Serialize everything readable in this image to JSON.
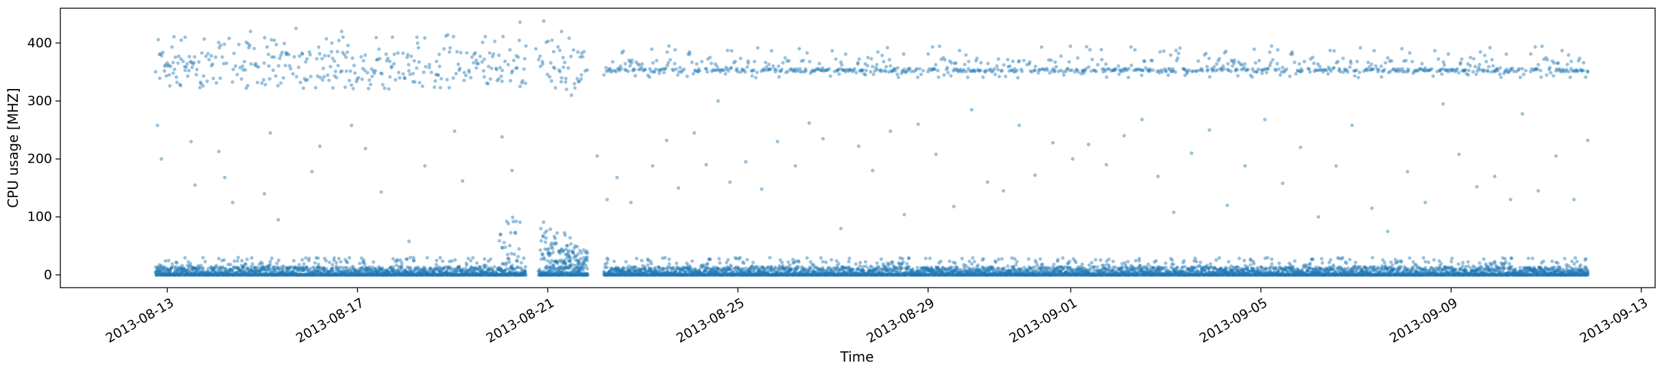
{
  "chart_data": {
    "type": "scatter",
    "title": "",
    "xlabel": "Time",
    "ylabel": "CPU usage [MHZ]",
    "xlim": [
      "2013-08-10T18:00",
      "2013-09-13T07:00"
    ],
    "ylim": [
      -22,
      460
    ],
    "grid": false,
    "legend": "none",
    "x_ticks": [
      "2013-08-13",
      "2013-08-17",
      "2013-08-21",
      "2013-08-25",
      "2013-08-29",
      "2013-09-01",
      "2013-09-05",
      "2013-09-09",
      "2013-09-13"
    ],
    "y_ticks": [
      0,
      100,
      200,
      300,
      400
    ],
    "series": [
      {
        "color": "#1f77b4",
        "marker": "circle",
        "alpha": 0.45,
        "x_start": "2013-08-12T18:00",
        "x_end": "2013-09-11T21:00",
        "points_description_values": {
          "baseline_cluster": {
            "range": [
              0,
              40
            ],
            "typical": 5
          },
          "upper_cluster": {
            "range": [
              320,
              420
            ],
            "typical": 355
          },
          "sparse_middle": {
            "range": [
              50,
              300
            ]
          },
          "peak_values": [
            436,
            438,
            425,
            421,
            420,
            410
          ]
        },
        "points": [
          [
            "2013-08-12T19:00",
            258
          ],
          [
            "2013-08-12T21:00",
            200
          ],
          [
            "2013-08-13T01:00",
            345
          ],
          [
            "2013-08-13T03:00",
            348
          ],
          [
            "2013-08-13T07:00",
            405
          ],
          [
            "2013-08-13T09:00",
            410
          ],
          [
            "2013-08-13T12:00",
            230
          ],
          [
            "2013-08-13T14:00",
            155
          ],
          [
            "2013-08-14T02:00",
            213
          ],
          [
            "2013-08-14T05:00",
            168
          ],
          [
            "2013-08-14T09:00",
            125
          ],
          [
            "2013-08-14T14:00",
            360
          ],
          [
            "2013-08-14T18:00",
            420
          ],
          [
            "2013-08-15T01:00",
            140
          ],
          [
            "2013-08-15T04:00",
            245
          ],
          [
            "2013-08-15T08:00",
            95
          ],
          [
            "2013-08-15T12:00",
            380
          ],
          [
            "2013-08-15T17:00",
            425
          ],
          [
            "2013-08-16T01:00",
            178
          ],
          [
            "2013-08-16T05:00",
            222
          ],
          [
            "2013-08-16T11:00",
            400
          ],
          [
            "2013-08-16T16:00",
            420
          ],
          [
            "2013-08-16T21:00",
            258
          ],
          [
            "2013-08-17T04:00",
            218
          ],
          [
            "2013-08-17T09:00",
            352
          ],
          [
            "2013-08-17T12:00",
            143
          ],
          [
            "2013-08-18T02:00",
            58
          ],
          [
            "2013-08-18T06:00",
            410
          ],
          [
            "2013-08-18T10:00",
            188
          ],
          [
            "2013-08-19T01:00",
            248
          ],
          [
            "2013-08-19T05:00",
            162
          ],
          [
            "2013-08-19T12:00",
            357
          ],
          [
            "2013-08-19T16:00",
            372
          ],
          [
            "2013-08-20T01:00",
            238
          ],
          [
            "2013-08-20T06:00",
            180
          ],
          [
            "2013-08-20T10:00",
            436
          ],
          [
            "2013-08-20T13:00",
            395
          ],
          [
            "2013-08-20T18:00",
            390
          ],
          [
            "2013-08-20T22:00",
            438
          ],
          [
            "2013-08-21T03:00",
            385
          ],
          [
            "2013-08-21T07:00",
            420
          ],
          [
            "2013-08-21T12:00",
            310
          ],
          [
            "2013-08-21T17:00",
            345
          ],
          [
            "2013-08-22T01:00",
            205
          ],
          [
            "2013-08-22T06:00",
            130
          ],
          [
            "2013-08-22T11:00",
            168
          ],
          [
            "2013-08-22T18:00",
            125
          ],
          [
            "2013-08-23T05:00",
            188
          ],
          [
            "2013-08-23T12:00",
            232
          ],
          [
            "2013-08-23T18:00",
            150
          ],
          [
            "2013-08-24T02:00",
            245
          ],
          [
            "2013-08-24T08:00",
            190
          ],
          [
            "2013-08-24T14:00",
            300
          ],
          [
            "2013-08-24T20:00",
            160
          ],
          [
            "2013-08-25T04:00",
            195
          ],
          [
            "2013-08-25T12:00",
            148
          ],
          [
            "2013-08-25T20:00",
            230
          ],
          [
            "2013-08-26T05:00",
            188
          ],
          [
            "2013-08-26T12:00",
            262
          ],
          [
            "2013-08-26T19:00",
            235
          ],
          [
            "2013-08-27T04:00",
            80
          ],
          [
            "2013-08-27T13:00",
            222
          ],
          [
            "2013-08-27T20:00",
            180
          ],
          [
            "2013-08-28T05:00",
            248
          ],
          [
            "2013-08-28T12:00",
            104
          ],
          [
            "2013-08-28T19:00",
            260
          ],
          [
            "2013-08-29T04:00",
            208
          ],
          [
            "2013-08-29T13:00",
            118
          ],
          [
            "2013-08-29T22:00",
            285
          ],
          [
            "2013-08-30T06:00",
            160
          ],
          [
            "2013-08-30T14:00",
            145
          ],
          [
            "2013-08-30T22:00",
            258
          ],
          [
            "2013-08-31T06:00",
            172
          ],
          [
            "2013-08-31T15:00",
            228
          ],
          [
            "2013-09-01T01:00",
            200
          ],
          [
            "2013-09-01T09:00",
            225
          ],
          [
            "2013-09-01T18:00",
            190
          ],
          [
            "2013-09-02T03:00",
            240
          ],
          [
            "2013-09-02T12:00",
            268
          ],
          [
            "2013-09-02T20:00",
            170
          ],
          [
            "2013-09-03T04:00",
            108
          ],
          [
            "2013-09-03T13:00",
            210
          ],
          [
            "2013-09-03T22:00",
            250
          ],
          [
            "2013-09-04T07:00",
            120
          ],
          [
            "2013-09-04T16:00",
            188
          ],
          [
            "2013-09-05T02:00",
            268
          ],
          [
            "2013-09-05T11:00",
            158
          ],
          [
            "2013-09-05T20:00",
            220
          ],
          [
            "2013-09-06T05:00",
            100
          ],
          [
            "2013-09-06T14:00",
            188
          ],
          [
            "2013-09-06T22:00",
            258
          ],
          [
            "2013-09-07T08:00",
            115
          ],
          [
            "2013-09-07T16:00",
            75
          ],
          [
            "2013-09-08T02:00",
            178
          ],
          [
            "2013-09-08T11:00",
            125
          ],
          [
            "2013-09-08T20:00",
            295
          ],
          [
            "2013-09-09T04:00",
            208
          ],
          [
            "2013-09-09T13:00",
            152
          ],
          [
            "2013-09-09T22:00",
            170
          ],
          [
            "2013-09-10T06:00",
            130
          ],
          [
            "2013-09-10T12:00",
            278
          ],
          [
            "2013-09-10T20:00",
            145
          ],
          [
            "2013-09-11T05:00",
            205
          ],
          [
            "2013-09-11T14:00",
            130
          ],
          [
            "2013-09-11T21:00",
            232
          ]
        ]
      }
    ]
  }
}
